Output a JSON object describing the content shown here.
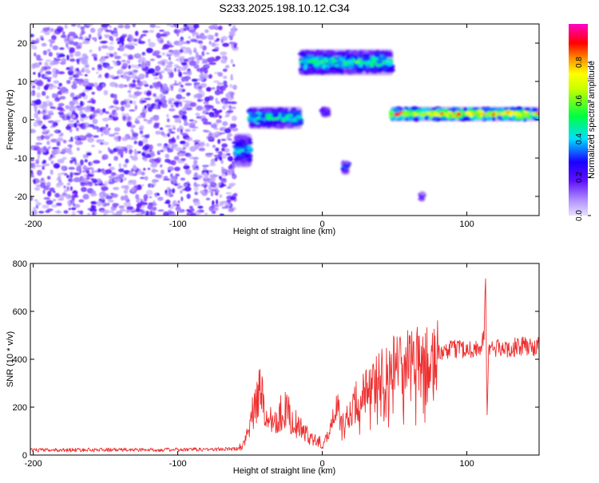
{
  "title": "S233.2025.198.10.12.C34",
  "chart_data": [
    {
      "type": "heatmap",
      "xlabel": "Height of straight line (km)",
      "ylabel": "Frequency (Hz)",
      "xlim": [
        -202,
        150
      ],
      "ylim": [
        -25,
        25
      ],
      "xticks": [
        -200,
        -100,
        0,
        100
      ],
      "yticks": [
        -20,
        -10,
        0,
        10,
        20
      ],
      "colorbar": {
        "label": "Normalized spectral amplitude",
        "range": [
          0,
          1
        ],
        "ticks": [
          0.0,
          0.2,
          0.4,
          0.6,
          0.8
        ],
        "colors": [
          "#e8e0ff",
          "#7a28ff",
          "#1a00ff",
          "#00ddff",
          "#00ff40",
          "#ffff00",
          "#ff8000",
          "#ff0000",
          "#ff00c8"
        ]
      },
      "features": [
        {
          "x": [
            -202,
            -60
          ],
          "freq": [
            -25,
            25
          ],
          "amplitude": [
            0.05,
            0.25
          ],
          "kind": "broadband noise"
        },
        {
          "x": [
            -60,
            -50
          ],
          "freq": [
            -12,
            -4
          ],
          "amplitude": 0.4
        },
        {
          "x": [
            -50,
            -15
          ],
          "freq": [
            -2,
            3
          ],
          "amplitude": 0.5
        },
        {
          "x": [
            -15,
            48
          ],
          "freq": [
            12,
            18
          ],
          "amplitude": 0.5
        },
        {
          "x": [
            0,
            5
          ],
          "freq": [
            1,
            3
          ],
          "amplitude": 0.35
        },
        {
          "x": [
            14,
            18
          ],
          "freq": [
            -14,
            -11
          ],
          "amplitude": 0.4
        },
        {
          "x": [
            68,
            70
          ],
          "freq": [
            -21,
            -19
          ],
          "amplitude": 0.25
        },
        {
          "x": [
            48,
            150
          ],
          "freq": [
            0,
            3
          ],
          "amplitude": 0.85
        }
      ]
    },
    {
      "type": "line",
      "xlabel": "Height of straight line (km)",
      "ylabel": "SNR (10 * v/v)",
      "xlim": [
        -202,
        150
      ],
      "ylim": [
        0,
        800
      ],
      "xticks": [
        -200,
        -100,
        0,
        100
      ],
      "yticks": [
        0,
        200,
        400,
        600,
        800
      ],
      "color": "#ee3030",
      "series": [
        {
          "x": [
            -202,
            -150,
            -100,
            -60,
            -55,
            -50,
            -45,
            -42,
            -40,
            -35,
            -30,
            -25,
            -20,
            -15,
            -10,
            -5,
            -2,
            0,
            5,
            10,
            15,
            20,
            25,
            30,
            35,
            40,
            45,
            50,
            55,
            60,
            65,
            70,
            75,
            80,
            85,
            90,
            95,
            100,
            105,
            110,
            112,
            113,
            114,
            115,
            118,
            125,
            130,
            135,
            140,
            145,
            150
          ],
          "y": [
            20,
            22,
            22,
            25,
            40,
            140,
            220,
            300,
            160,
            150,
            170,
            190,
            140,
            110,
            80,
            70,
            60,
            30,
            110,
            200,
            150,
            180,
            280,
            270,
            300,
            330,
            360,
            380,
            380,
            400,
            400,
            410,
            410,
            420,
            430,
            440,
            450,
            440,
            445,
            450,
            500,
            780,
            140,
            440,
            450,
            440,
            450,
            450,
            455,
            450,
            455
          ]
        }
      ]
    }
  ]
}
